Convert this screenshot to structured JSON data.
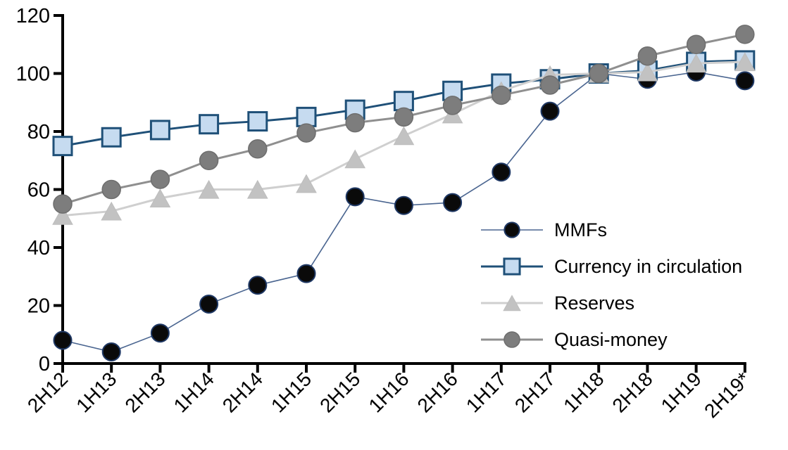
{
  "chart_data": {
    "type": "line",
    "title": "",
    "xlabel": "",
    "ylabel": "",
    "categories": [
      "2H12",
      "1H13",
      "2H13",
      "1H14",
      "2H14",
      "1H15",
      "2H15",
      "1H16",
      "2H16",
      "1H17",
      "2H17",
      "1H18",
      "2H18",
      "1H19",
      "2H19*"
    ],
    "series": [
      {
        "name": "MMFs",
        "marker": "circle",
        "values": [
          8,
          4,
          10.5,
          20.5,
          27,
          31,
          57.5,
          54.5,
          55.5,
          66,
          87,
          100,
          98,
          100.5,
          97.5
        ],
        "line_color": "#4A6590",
        "line_width": 1.6,
        "marker_fill": "#0A0A0A",
        "marker_stroke": "#1F3864",
        "marker_stroke_width": 2,
        "marker_size": 25
      },
      {
        "name": "Currency in circulation",
        "marker": "square",
        "values": [
          75,
          78,
          80.5,
          82.5,
          83.5,
          85,
          87.5,
          90.5,
          94,
          96.5,
          98,
          100,
          101,
          104,
          104.5
        ],
        "line_color": "#1F5078",
        "line_width": 3,
        "marker_fill": "#C6DBF0",
        "marker_stroke": "#1F5078",
        "marker_stroke_width": 3,
        "marker_size": 26
      },
      {
        "name": "Reserves",
        "marker": "triangle",
        "values": [
          51,
          52.5,
          57,
          60,
          60,
          62,
          70.5,
          78.5,
          86,
          94,
          99.5,
          100,
          100.5,
          103.5,
          104
        ],
        "line_color": "#CFCFCF",
        "line_width": 3,
        "marker_fill": "#C2C2C2",
        "marker_stroke": "#BDBDBD",
        "marker_stroke_width": 1,
        "marker_size": 28
      },
      {
        "name": "Quasi-money",
        "marker": "circle",
        "values": [
          55,
          60,
          63.5,
          70,
          74,
          79.5,
          83,
          85,
          89,
          92.5,
          96,
          100,
          106,
          110,
          113.5
        ],
        "line_color": "#8F8F8F",
        "line_width": 3,
        "marker_fill": "#7D7D7D",
        "marker_stroke": "#6E6E6E",
        "marker_stroke_width": 1.5,
        "marker_size": 26
      }
    ],
    "ylim": [
      0,
      120
    ],
    "yticks": [
      "0",
      "20",
      "40",
      "60",
      "80",
      "100",
      "120"
    ],
    "grid": false,
    "legend_position": "inside-right",
    "axis_color": "#000000",
    "background": "#FFFFFF"
  }
}
